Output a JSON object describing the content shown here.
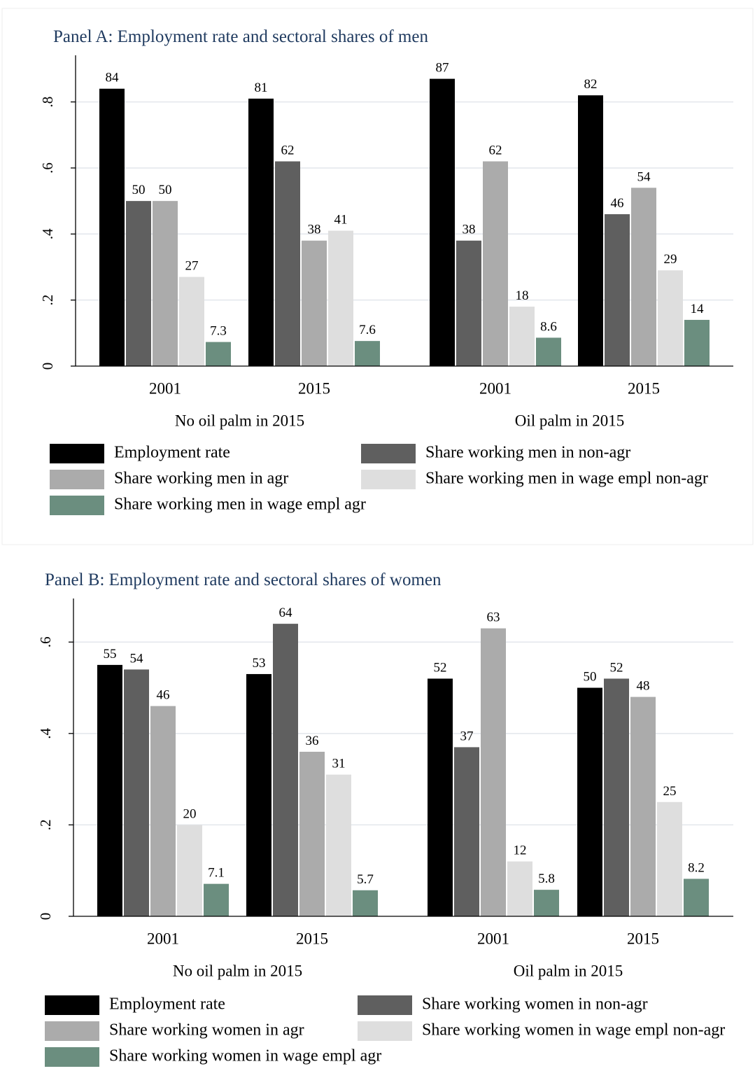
{
  "chart_data": [
    {
      "type": "bar",
      "title": "Panel A: Employment rate and sectoral shares of men",
      "xlabel": "",
      "ylabel": "",
      "ylim": [
        0,
        0.92
      ],
      "yticks": [
        0,
        0.2,
        0.4,
        0.6,
        0.8
      ],
      "ytick_labels": [
        "0",
        ".2",
        ".4",
        ".6",
        ".8"
      ],
      "grid": true,
      "legend_position": "bottom",
      "groups": [
        "No oil palm in 2015",
        "Oil palm in 2015"
      ],
      "categories": [
        "2001",
        "2015",
        "2001",
        "2015"
      ],
      "series": [
        {
          "name": "Employment rate",
          "color": "#000000",
          "values": [
            0.84,
            0.81,
            0.87,
            0.82
          ],
          "labels": [
            "84",
            "81",
            "87",
            "82"
          ]
        },
        {
          "name": "Share working men in non-agr",
          "color": "#5f5f5f",
          "values": [
            0.5,
            0.62,
            0.38,
            0.46
          ],
          "labels": [
            "50",
            "62",
            "38",
            "46"
          ]
        },
        {
          "name": "Share working men in agr",
          "color": "#ababab",
          "values": [
            0.5,
            0.38,
            0.62,
            0.54
          ],
          "labels": [
            "50",
            "38",
            "62",
            "54"
          ]
        },
        {
          "name": "Share working men in wage empl non-agr",
          "color": "#dedede",
          "values": [
            0.27,
            0.41,
            0.18,
            0.29
          ],
          "labels": [
            "27",
            "41",
            "18",
            "29"
          ]
        },
        {
          "name": "Share working men in wage empl agr",
          "color": "#6b8e7f",
          "values": [
            0.073,
            0.076,
            0.086,
            0.14
          ],
          "labels": [
            "7.3",
            "7.6",
            "8.6",
            "14"
          ]
        }
      ]
    },
    {
      "type": "bar",
      "title": "Panel B: Employment rate and sectoral shares of women",
      "xlabel": "",
      "ylabel": "",
      "ylim": [
        0,
        0.68
      ],
      "yticks": [
        0,
        0.2,
        0.4,
        0.6
      ],
      "ytick_labels": [
        "0",
        ".2",
        ".4",
        ".6"
      ],
      "grid": true,
      "legend_position": "bottom",
      "groups": [
        "No oil palm in 2015",
        "Oil palm in 2015"
      ],
      "categories": [
        "2001",
        "2015",
        "2001",
        "2015"
      ],
      "series": [
        {
          "name": "Employment rate",
          "color": "#000000",
          "values": [
            0.55,
            0.53,
            0.52,
            0.5
          ],
          "labels": [
            "55",
            "53",
            "52",
            "50"
          ]
        },
        {
          "name": "Share working women in non-agr",
          "color": "#5f5f5f",
          "values": [
            0.54,
            0.64,
            0.37,
            0.52
          ],
          "labels": [
            "54",
            "64",
            "37",
            "52"
          ]
        },
        {
          "name": "Share working women in agr",
          "color": "#ababab",
          "values": [
            0.46,
            0.36,
            0.63,
            0.48
          ],
          "labels": [
            "46",
            "36",
            "63",
            "48"
          ]
        },
        {
          "name": "Share working women in wage empl non-agr",
          "color": "#dedede",
          "values": [
            0.2,
            0.31,
            0.12,
            0.25
          ],
          "labels": [
            "20",
            "31",
            "12",
            "25"
          ]
        },
        {
          "name": "Share working women in wage empl agr",
          "color": "#6b8e7f",
          "values": [
            0.071,
            0.057,
            0.058,
            0.082
          ],
          "labels": [
            "7.1",
            "5.7",
            "5.8",
            "8.2"
          ]
        }
      ]
    }
  ]
}
